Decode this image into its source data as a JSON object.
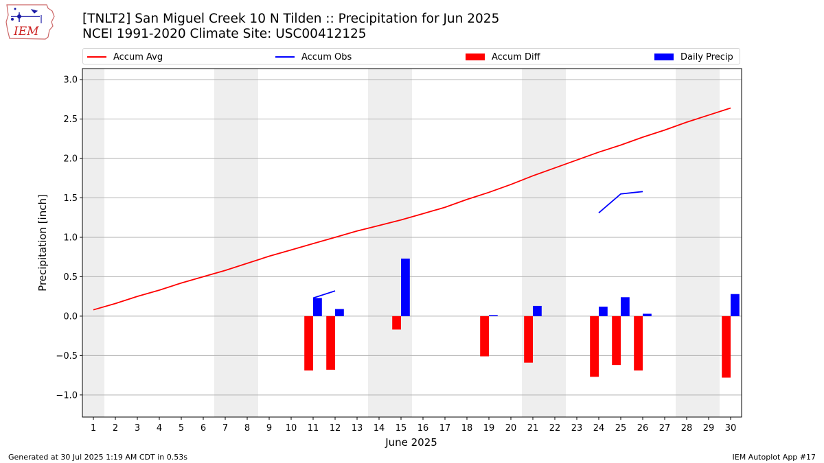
{
  "logo": {
    "text": "IEM"
  },
  "title": {
    "line1": "[TNLT2] San Miguel Creek 10 N Tilden :: Precipitation for Jun 2025",
    "line2": "NCEI 1991-2020 Climate Site: USC00412125"
  },
  "footer": {
    "left": "Generated at 30 Jul 2025 1:19 AM CDT in 0.53s",
    "right": "IEM Autoplot App #17"
  },
  "colors": {
    "avg": "#ff0000",
    "obs": "#0000ff",
    "diff": "#ff0000",
    "daily": "#0000ff",
    "weekend": "#eeeeee",
    "grid": "#b0b0b0"
  },
  "chart_data": {
    "type": "bar",
    "xlabel": "June 2025",
    "ylabel": "Precipitation [inch]",
    "xlim": [
      0.5,
      30.5
    ],
    "ylim": [
      -1.28,
      3.14
    ],
    "yticks": [
      -1.0,
      -0.5,
      0.0,
      0.5,
      1.0,
      1.5,
      2.0,
      2.5,
      3.0
    ],
    "ytick_labels": [
      "−1.0",
      "−0.5",
      "0.0",
      "0.5",
      "1.0",
      "1.5",
      "2.0",
      "2.5",
      "3.0"
    ],
    "days": [
      1,
      2,
      3,
      4,
      5,
      6,
      7,
      8,
      9,
      10,
      11,
      12,
      13,
      14,
      15,
      16,
      17,
      18,
      19,
      20,
      21,
      22,
      23,
      24,
      25,
      26,
      27,
      28,
      29,
      30
    ],
    "grid": true,
    "legend_position": "top",
    "weekend_days": [
      1,
      7,
      8,
      14,
      15,
      21,
      22,
      28,
      29
    ],
    "series": [
      {
        "name": "Accum Avg",
        "kind": "line",
        "x": [
          1,
          2,
          3,
          4,
          5,
          6,
          7,
          8,
          9,
          10,
          11,
          12,
          13,
          14,
          15,
          16,
          17,
          18,
          19,
          20,
          21,
          22,
          23,
          24,
          25,
          26,
          27,
          28,
          29,
          30
        ],
        "values": [
          0.08,
          0.16,
          0.25,
          0.33,
          0.42,
          0.5,
          0.58,
          0.67,
          0.76,
          0.84,
          0.92,
          1.0,
          1.08,
          1.15,
          1.22,
          1.3,
          1.38,
          1.48,
          1.57,
          1.67,
          1.78,
          1.88,
          1.98,
          2.08,
          2.17,
          2.27,
          2.36,
          2.46,
          2.55,
          2.64
        ]
      },
      {
        "name": "Accum Obs",
        "kind": "line",
        "segments": [
          {
            "x": [
              11,
              12
            ],
            "values": [
              0.23,
              0.32
            ]
          },
          {
            "x": [
              24,
              25,
              26
            ],
            "values": [
              1.31,
              1.55,
              1.58
            ]
          }
        ]
      },
      {
        "name": "Accum Diff",
        "kind": "bar",
        "x": [
          11,
          12,
          15,
          19,
          21,
          24,
          25,
          26,
          30
        ],
        "values": [
          -0.69,
          -0.68,
          -0.17,
          -0.51,
          -0.59,
          -0.77,
          -0.62,
          -0.69,
          -0.78
        ]
      },
      {
        "name": "Daily Precip",
        "kind": "bar",
        "x": [
          11,
          12,
          15,
          19,
          21,
          24,
          25,
          26,
          30
        ],
        "values": [
          0.23,
          0.09,
          0.73,
          0.01,
          0.13,
          0.12,
          0.24,
          0.03,
          0.28
        ]
      }
    ]
  }
}
